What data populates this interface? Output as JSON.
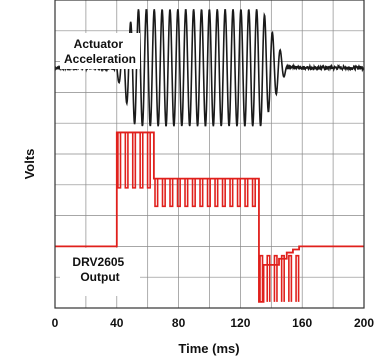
{
  "chart_data": {
    "type": "line",
    "title": "",
    "xlabel": "Time (ms)",
    "ylabel": "Volts",
    "xlim": [
      0,
      200
    ],
    "ylim": [
      0,
      10
    ],
    "x_ticks": [
      0,
      40,
      80,
      120,
      160,
      200
    ],
    "grid": true,
    "annotations": [
      "Actuator\nAcceleration",
      "DRV2605\nOutput"
    ],
    "series": [
      {
        "color": "#1a1a1a",
        "description": "sinusoidal oscillation about baseline ~7.8 V",
        "baseline": 7.8,
        "segments": [
          {
            "x_start": 0,
            "x_end": 40,
            "amplitude": 0.05,
            "period_ms": 0
          },
          {
            "x_start": 40,
            "x_end": 52,
            "amplitude_start": 0.3,
            "amplitude_end": 1.9,
            "period_ms": 5.1
          },
          {
            "x_start": 52,
            "x_end": 134,
            "amplitude": 1.9,
            "period_ms": 5.1
          },
          {
            "x_start": 134,
            "x_end": 150,
            "amplitude_start": 1.9,
            "amplitude_end": 0.1,
            "period_ms": 5.1
          },
          {
            "x_start": 150,
            "x_end": 200,
            "amplitude": 0.05,
            "period_ms": 0
          }
        ]
      },
      {
        "color": "#e0201c",
        "description": "drive waveform: overdrive, sustain, braking",
        "points": [
          [
            0,
            2.0
          ],
          [
            40,
            2.0
          ],
          [
            40,
            5.7
          ],
          [
            64,
            5.7
          ],
          [
            64,
            4.2
          ],
          [
            132,
            4.2
          ],
          [
            132,
            0.2
          ],
          [
            135,
            0.2
          ],
          [
            135,
            1.4
          ],
          [
            145,
            1.4
          ],
          [
            145,
            1.6
          ],
          [
            150,
            1.6
          ],
          [
            150,
            1.8
          ],
          [
            154,
            1.8
          ],
          [
            154,
            1.9
          ],
          [
            158,
            1.9
          ],
          [
            158,
            2.0
          ],
          [
            200,
            2.0
          ]
        ],
        "pulse_groups": [
          {
            "x_start": 40,
            "x_end": 64,
            "level": 5.7,
            "dip_to": 3.9,
            "count": 5
          },
          {
            "x_start": 64,
            "x_end": 132,
            "level": 4.2,
            "dip_to": 3.3,
            "count": 14
          },
          {
            "x_start": 132,
            "x_end": 160,
            "level": 0.2,
            "dip_to": 1.7,
            "count": 6
          }
        ]
      }
    ]
  }
}
